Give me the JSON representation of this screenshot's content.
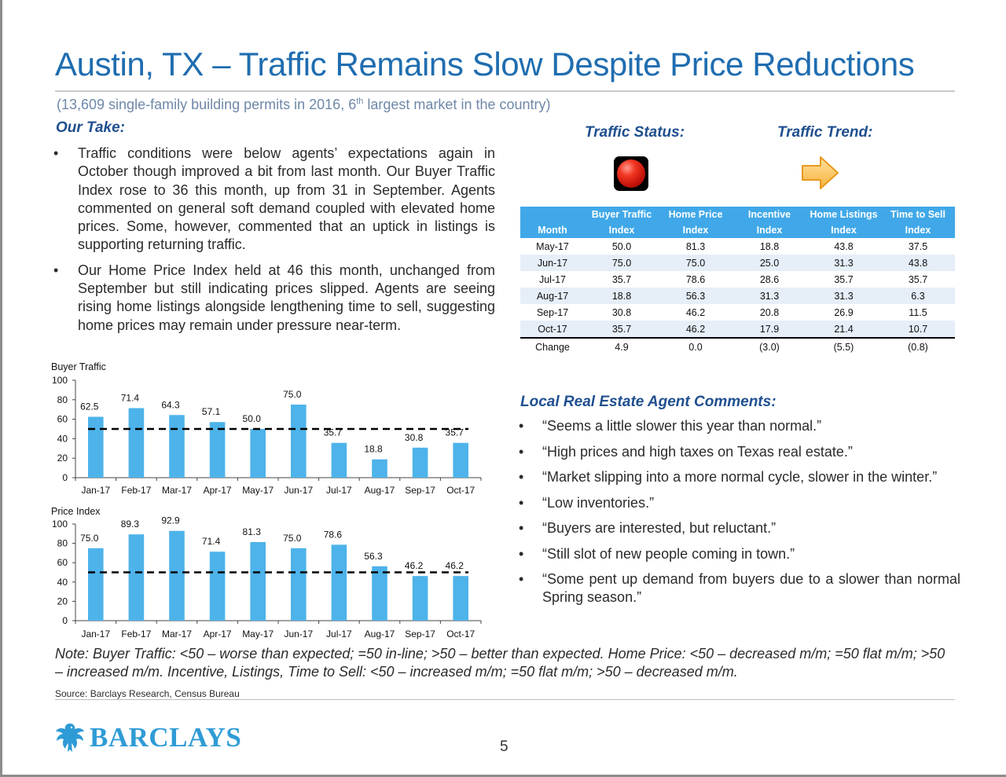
{
  "title": "Austin, TX – Traffic Remains Slow Despite Price Reductions",
  "subtitle": {
    "before": "(13,609 single-family building permits in 2016, 6",
    "sup": "th",
    "after": " largest market in the country)"
  },
  "our_take": {
    "heading": "Our Take:",
    "bullets": [
      "Traffic conditions were below agents’ expectations again in October though improved a bit from last month. Our Buyer Traffic Index rose to 36 this month, up from 31 in September. Agents commented on general soft demand coupled with elevated home prices. Some, however, commented that an uptick in listings is supporting returning traffic.",
      "Our Home Price Index held at 46 this month, unchanged from September but still indicating prices slipped. Agents are seeing rising home listings alongside lengthening time to sell, suggesting home prices may remain under pressure near-term."
    ]
  },
  "traffic_status": {
    "heading": "Traffic Status:",
    "icon": "red-light-icon",
    "color": "#e8261a"
  },
  "traffic_trend": {
    "heading": "Traffic Trend:",
    "icon": "arrow-right-icon",
    "color": "#f5b942"
  },
  "table": {
    "headers_top": [
      "",
      "Buyer Traffic",
      "Home Price",
      "Incentive",
      "Home Listings",
      "Time to Sell"
    ],
    "headers_bottom": [
      "Month",
      "Index",
      "Index",
      "Index",
      "Index",
      "Index"
    ],
    "rows": [
      [
        "May-17",
        "50.0",
        "81.3",
        "18.8",
        "43.8",
        "37.5"
      ],
      [
        "Jun-17",
        "75.0",
        "75.0",
        "25.0",
        "31.3",
        "43.8"
      ],
      [
        "Jul-17",
        "35.7",
        "78.6",
        "28.6",
        "35.7",
        "35.7"
      ],
      [
        "Aug-17",
        "18.8",
        "56.3",
        "31.3",
        "31.3",
        "6.3"
      ],
      [
        "Sep-17",
        "30.8",
        "46.2",
        "20.8",
        "26.9",
        "11.5"
      ],
      [
        "Oct-17",
        "35.7",
        "46.2",
        "17.9",
        "21.4",
        "10.7"
      ]
    ],
    "change": [
      "Change",
      "4.9",
      "0.0",
      "(3.0)",
      "(5.5)",
      "(0.8)"
    ]
  },
  "comments": {
    "heading": "Local Real Estate Agent Comments:",
    "items": [
      "“Seems a little slower this year than normal.”",
      "“High prices and high taxes on Texas real estate.”",
      "“Market slipping into a more normal cycle, slower in the winter.”",
      "“Low inventories.”",
      "“Buyers are interested, but reluctant.”",
      "“Still slot of new people coming in town.”",
      "“Some pent up demand from buyers due to a slower than normal Spring season.”"
    ]
  },
  "chart_data": [
    {
      "type": "bar",
      "title": "Buyer Traffic",
      "categories": [
        "Jan-17",
        "Feb-17",
        "Mar-17",
        "Apr-17",
        "May-17",
        "Jun-17",
        "Jul-17",
        "Aug-17",
        "Sep-17",
        "Oct-17"
      ],
      "values": [
        62.5,
        71.4,
        64.3,
        57.1,
        50.0,
        75.0,
        35.7,
        18.8,
        30.8,
        35.7
      ],
      "value_labels": [
        "62.5",
        "71.4",
        "64.3",
        "57.1",
        "50.0",
        "75.0",
        "35.7",
        "18.8",
        "30.8",
        "35.7"
      ],
      "reference_line": 50,
      "ylim": [
        0,
        100
      ],
      "yticks": [
        0,
        20,
        40,
        60,
        80,
        100
      ],
      "xlabel": "",
      "ylabel": "",
      "color": "#4db3ea"
    },
    {
      "type": "bar",
      "title": "Price Index",
      "categories": [
        "Jan-17",
        "Feb-17",
        "Mar-17",
        "Apr-17",
        "May-17",
        "Jun-17",
        "Jul-17",
        "Aug-17",
        "Sep-17",
        "Oct-17"
      ],
      "values": [
        75.0,
        89.3,
        92.9,
        71.4,
        81.3,
        75.0,
        78.6,
        56.3,
        46.2,
        46.2
      ],
      "value_labels": [
        "75.0",
        "89.3",
        "92.9",
        "71.4",
        "81.3",
        "75.0",
        "78.6",
        "56.3",
        "46.2",
        "46.2"
      ],
      "reference_line": 50,
      "ylim": [
        0,
        100
      ],
      "yticks": [
        0,
        20,
        40,
        60,
        80,
        100
      ],
      "xlabel": "",
      "ylabel": "",
      "color": "#4db3ea"
    }
  ],
  "note": "Note: Buyer Traffic: <50 – worse than expected; =50 in-line; >50 – better than expected. Home Price: <50 – decreased m/m; =50 flat m/m; >50 – increased m/m. Incentive, Listings, Time to Sell: <50 – increased m/m; =50 flat m/m; >50 – decreased m/m.",
  "source": "Source: Barclays Research, Census Bureau",
  "logo": {
    "text": "BARCLAYS",
    "icon": "eagle-icon"
  },
  "page_number": "5",
  "bullet_glyph": "•"
}
